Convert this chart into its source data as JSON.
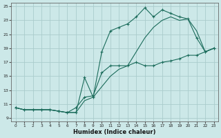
{
  "xlabel": "Humidex (Indice chaleur)",
  "bg_color": "#cce8e8",
  "grid_color": "#aacccc",
  "line_color": "#1a6b5a",
  "xlim": [
    -0.5,
    23.5
  ],
  "ylim": [
    8.5,
    25.5
  ],
  "xticks": [
    0,
    1,
    2,
    3,
    4,
    5,
    6,
    7,
    8,
    9,
    10,
    11,
    12,
    13,
    14,
    15,
    16,
    17,
    18,
    19,
    20,
    21,
    22,
    23
  ],
  "yticks": [
    9,
    11,
    13,
    15,
    17,
    19,
    21,
    23,
    25
  ],
  "line1_x": [
    0,
    1,
    2,
    3,
    4,
    5,
    6,
    7,
    8,
    9,
    10,
    11,
    12,
    13,
    14,
    15,
    16,
    17,
    18,
    19,
    20,
    21,
    22,
    23
  ],
  "line1_y": [
    10.5,
    10.2,
    10.2,
    10.2,
    10.2,
    10.0,
    9.8,
    9.8,
    14.8,
    12.0,
    18.5,
    21.5,
    22.0,
    22.5,
    23.5,
    24.8,
    23.5,
    24.5,
    24.0,
    23.5,
    23.2,
    20.5,
    18.5,
    19.0
  ],
  "line2_x": [
    0,
    1,
    2,
    3,
    4,
    5,
    6,
    7,
    8,
    9,
    10,
    11,
    12,
    13,
    14,
    15,
    16,
    17,
    18,
    19,
    20,
    21,
    22,
    23
  ],
  "line2_y": [
    10.5,
    10.2,
    10.2,
    10.2,
    10.2,
    10.0,
    9.8,
    10.5,
    12.0,
    12.2,
    15.5,
    16.5,
    16.5,
    16.5,
    17.0,
    16.5,
    16.5,
    17.0,
    17.2,
    17.5,
    18.0,
    18.0,
    18.5,
    19.0
  ],
  "line3_x": [
    0,
    1,
    2,
    3,
    4,
    5,
    6,
    7,
    8,
    9,
    10,
    11,
    12,
    13,
    14,
    15,
    16,
    17,
    18,
    19,
    20,
    21,
    22,
    23
  ],
  "line3_y": [
    10.5,
    10.2,
    10.2,
    10.2,
    10.2,
    10.0,
    9.8,
    9.8,
    11.5,
    12.0,
    13.5,
    15.0,
    16.0,
    16.5,
    18.5,
    20.5,
    22.0,
    23.0,
    23.5,
    23.0,
    23.2,
    21.5,
    18.5,
    19.0
  ]
}
